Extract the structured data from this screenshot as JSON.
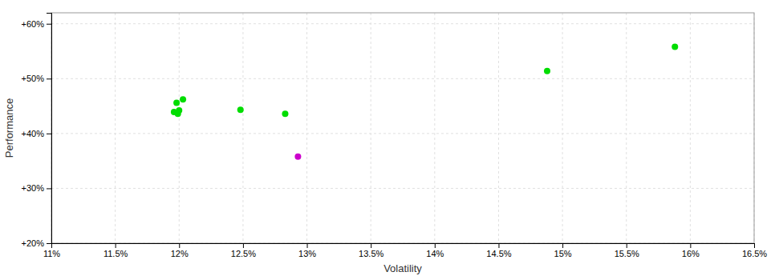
{
  "chart_data": {
    "type": "scatter",
    "xlabel": "Volatility",
    "ylabel": "Performance",
    "xlim": [
      0.11,
      0.165
    ],
    "ylim": [
      0.2,
      0.62
    ],
    "xticks": [
      {
        "value": 0.11,
        "label": "11%"
      },
      {
        "value": 0.115,
        "label": "11.5%"
      },
      {
        "value": 0.12,
        "label": "12%"
      },
      {
        "value": 0.125,
        "label": "12.5%"
      },
      {
        "value": 0.13,
        "label": "13%"
      },
      {
        "value": 0.135,
        "label": "13.5%"
      },
      {
        "value": 0.14,
        "label": "14%"
      },
      {
        "value": 0.145,
        "label": "14.5%"
      },
      {
        "value": 0.15,
        "label": "15%"
      },
      {
        "value": 0.155,
        "label": "15.5%"
      },
      {
        "value": 0.16,
        "label": "16%"
      },
      {
        "value": 0.165,
        "label": "16.5%"
      }
    ],
    "yticks": [
      {
        "value": 0.2,
        "label": "+20%"
      },
      {
        "value": 0.3,
        "label": "+30%"
      },
      {
        "value": 0.4,
        "label": "+40%"
      },
      {
        "value": 0.5,
        "label": "+50%"
      },
      {
        "value": 0.6,
        "label": "+60%"
      }
    ],
    "grid": true,
    "series": [
      {
        "color": "#00dd00",
        "x": [
          0.1198,
          0.1203,
          0.12,
          0.1196,
          0.1199,
          0.1248,
          0.1283,
          0.1488,
          0.1588
        ],
        "values": [
          0.456,
          0.462,
          0.442,
          0.439,
          0.436,
          0.443,
          0.436,
          0.514,
          0.558
        ]
      },
      {
        "color": "#cc00cc",
        "x": [
          0.1293
        ],
        "values": [
          0.358
        ]
      }
    ]
  }
}
